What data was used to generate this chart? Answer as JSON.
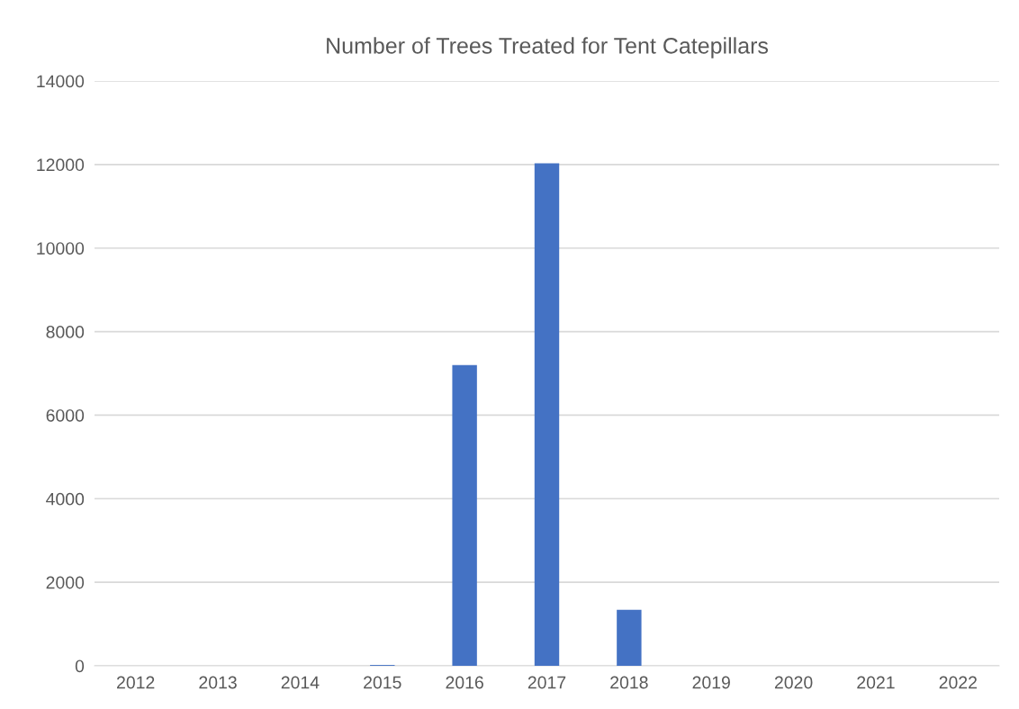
{
  "chart_data": {
    "type": "bar",
    "title": "Number of Trees Treated for Tent Catepillars",
    "categories": [
      "2012",
      "2013",
      "2014",
      "2015",
      "2016",
      "2017",
      "2018",
      "2019",
      "2020",
      "2021",
      "2022"
    ],
    "values": [
      0,
      0,
      0,
      20,
      7200,
      12030,
      1340,
      0,
      0,
      0,
      0
    ],
    "color": "#4472c4",
    "ylim": [
      0,
      14000
    ],
    "yticks": [
      0,
      2000,
      4000,
      6000,
      8000,
      10000,
      12000,
      14000
    ],
    "grid": "y"
  }
}
